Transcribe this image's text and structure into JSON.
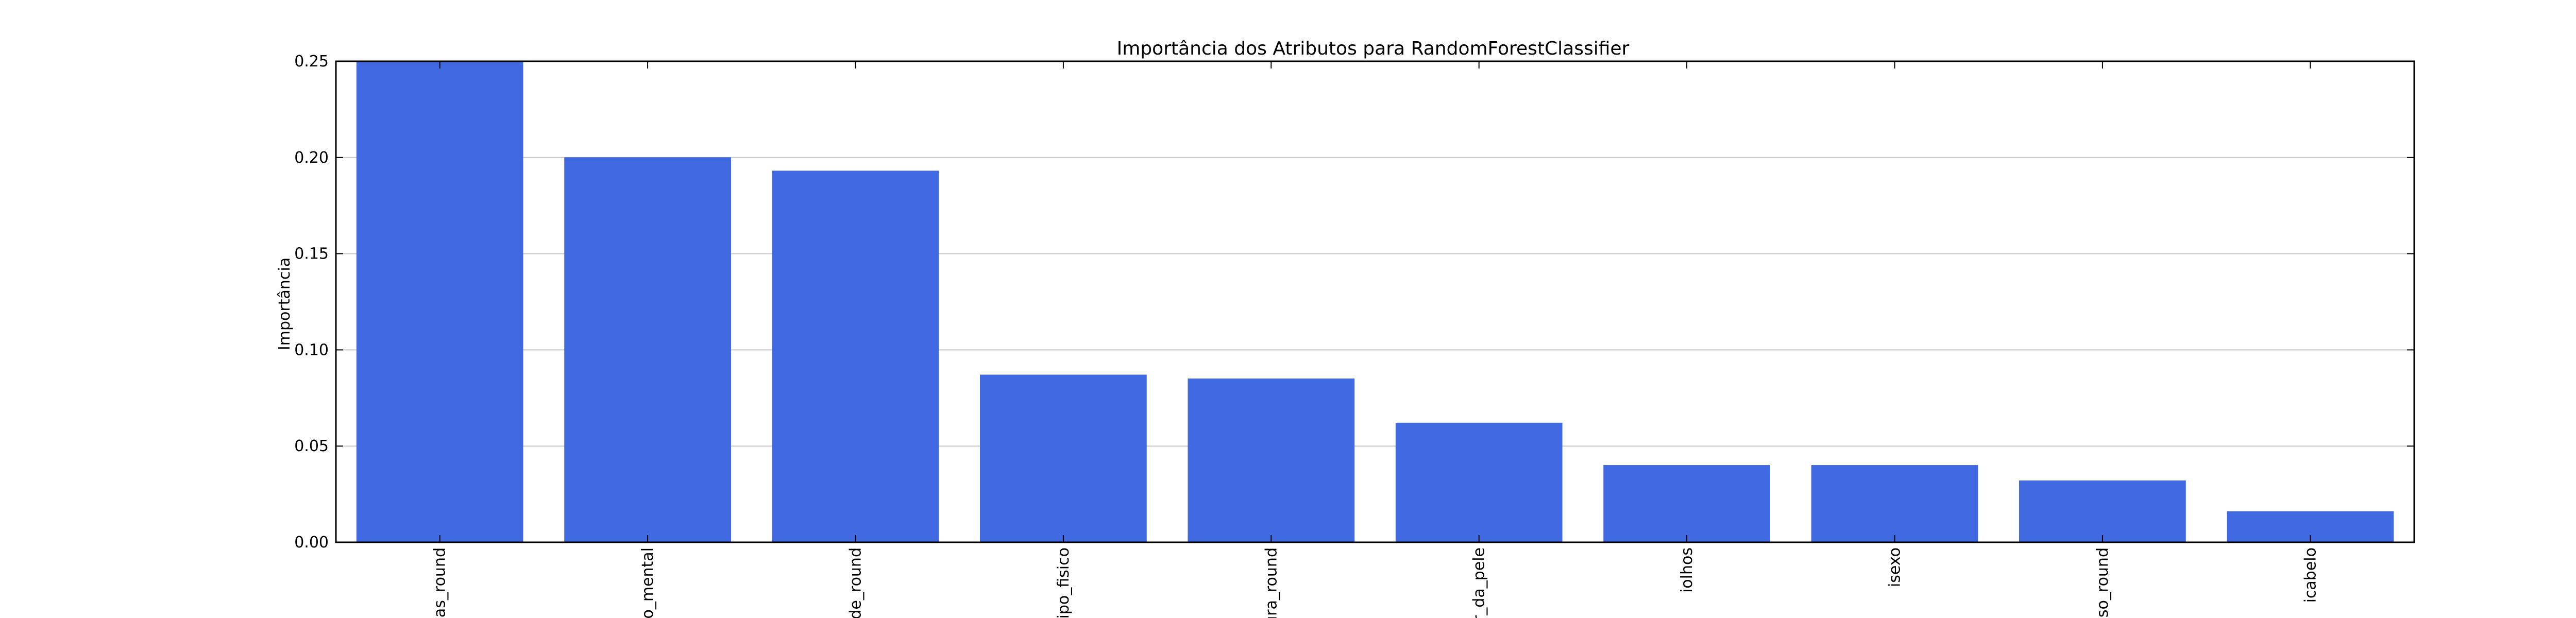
{
  "chart_data": {
    "type": "bar",
    "title": "Importância dos Atributos para RandomForestClassifier",
    "xlabel": "",
    "ylabel": "Importância",
    "ylim": [
      0,
      0.25
    ],
    "yticks": [
      "0.00",
      "0.05",
      "0.10",
      "0.15",
      "0.20",
      "0.25"
    ],
    "categories": [
      "ias_round",
      "io_mental",
      "de_round",
      "ipo_fisico",
      "ura_round",
      "r_da_pele",
      "iolhos",
      "isexo",
      "eso_round",
      "icabelo"
    ],
    "values": [
      0.25,
      0.2,
      0.193,
      0.087,
      0.085,
      0.062,
      0.04,
      0.04,
      0.032,
      0.016
    ],
    "grid": "y",
    "bar_color": "#4169E1",
    "edge_color": "#4169E1",
    "grid_color": "#c8c8c8",
    "axis_color": "#000000",
    "background": "#ffffff"
  }
}
